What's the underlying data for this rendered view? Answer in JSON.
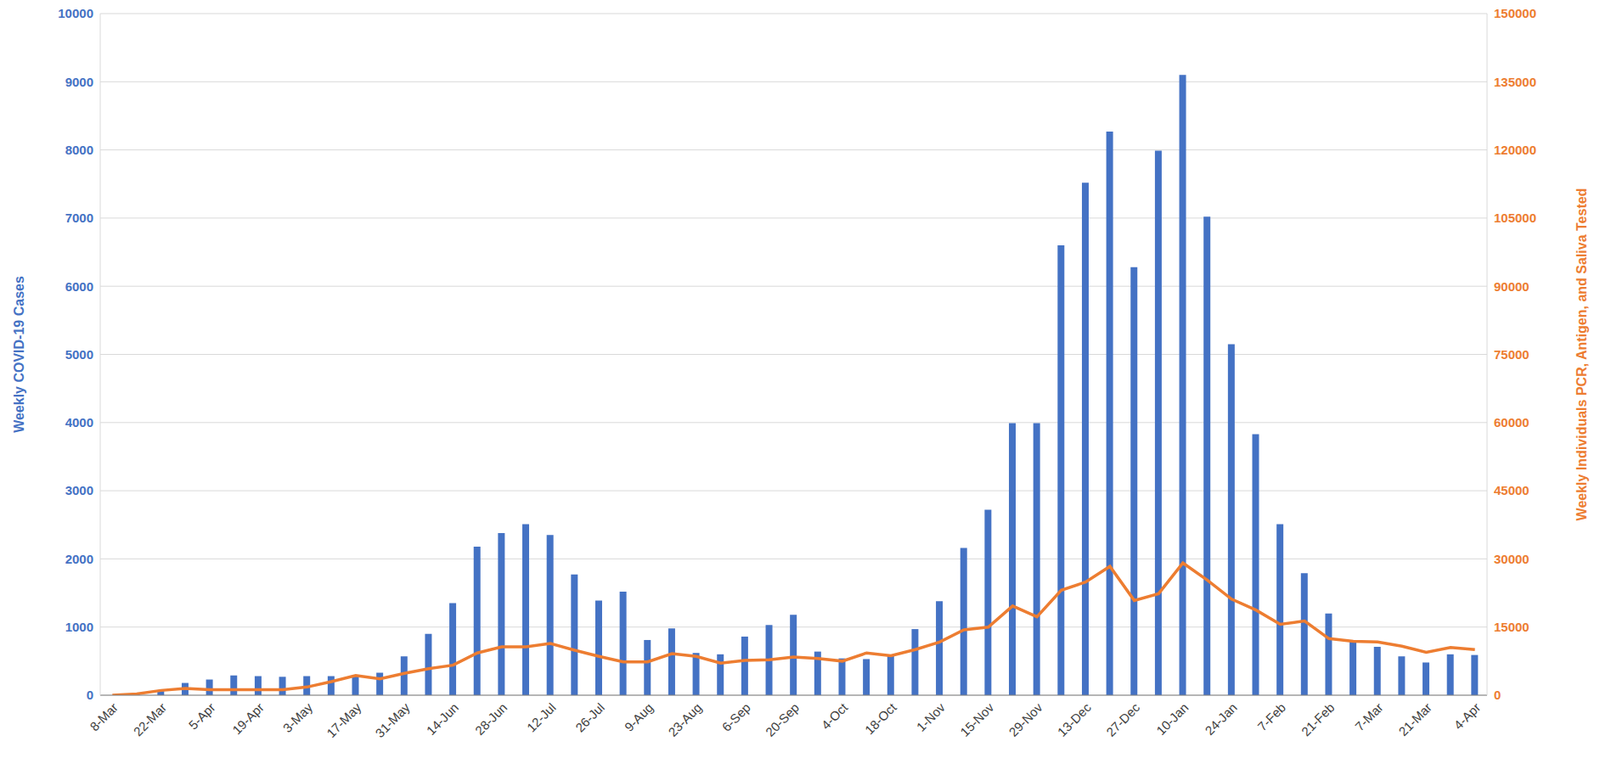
{
  "chart_data": {
    "type": "bar",
    "y_label": "Weekly COVID-19 Cases",
    "y2_label": "Weekly Individuals PCR, Antigen, and Saliva Tested",
    "categories": [
      "8-Mar",
      null,
      "22-Mar",
      null,
      "5-Apr",
      null,
      "19-Apr",
      null,
      "3-May",
      null,
      "17-May",
      null,
      "31-May",
      null,
      "14-Jun",
      null,
      "28-Jun",
      null,
      "12-Jul",
      null,
      "26-Jul",
      null,
      "9-Aug",
      null,
      "23-Aug",
      null,
      "6-Sep",
      null,
      "20-Sep",
      null,
      "4-Oct",
      null,
      "18-Oct",
      null,
      "1-Nov",
      null,
      "15-Nov",
      null,
      "29-Nov",
      null,
      "13-Dec",
      null,
      "27-Dec",
      null,
      "10-Jan",
      null,
      "24-Jan",
      null,
      "7-Feb",
      null,
      "21-Feb",
      null,
      "7-Mar",
      null,
      "21-Mar",
      null,
      "4-Apr"
    ],
    "series": [
      {
        "type": "bar",
        "color": "#4472c4",
        "values": [
          0,
          10,
          60,
          180,
          230,
          290,
          280,
          270,
          280,
          280,
          280,
          330,
          570,
          900,
          1350,
          2180,
          2380,
          2510,
          2350,
          1770,
          1390,
          1520,
          810,
          980,
          620,
          600,
          860,
          1030,
          1180,
          640,
          540,
          530,
          580,
          970,
          1380,
          2160,
          2720,
          3990,
          3990,
          6600,
          7520,
          8270,
          6280,
          7990,
          9100,
          7020,
          5150,
          3830,
          2510,
          1790,
          1200,
          790,
          710,
          570,
          480,
          600,
          590
        ]
      },
      {
        "type": "line",
        "axis": "y2",
        "color": "#ed7d31",
        "marker": "none",
        "values": [
          0,
          300,
          1050,
          1500,
          1200,
          1200,
          1200,
          1200,
          1800,
          3000,
          4350,
          3600,
          4800,
          5850,
          6600,
          9300,
          10650,
          10650,
          11400,
          9900,
          8550,
          7350,
          7350,
          9150,
          8550,
          7050,
          7650,
          7800,
          8400,
          8100,
          7500,
          9300,
          8700,
          10050,
          11700,
          14400,
          15000,
          19650,
          17250,
          23100,
          24900,
          28350,
          20850,
          22350,
          29100,
          25350,
          21150,
          18750,
          15600,
          16350,
          12450,
          11850,
          11700,
          10800,
          9450,
          10500,
          10050
        ]
      }
    ],
    "ylim": [
      0,
      10000
    ],
    "yticks": [
      0,
      1000,
      2000,
      3000,
      4000,
      5000,
      6000,
      7000,
      8000,
      9000,
      10000
    ],
    "y2lim": [
      0,
      150000
    ],
    "y2ticks": [
      0,
      15000,
      30000,
      45000,
      60000,
      75000,
      90000,
      105000,
      120000,
      135000,
      150000
    ],
    "grid": true
  }
}
